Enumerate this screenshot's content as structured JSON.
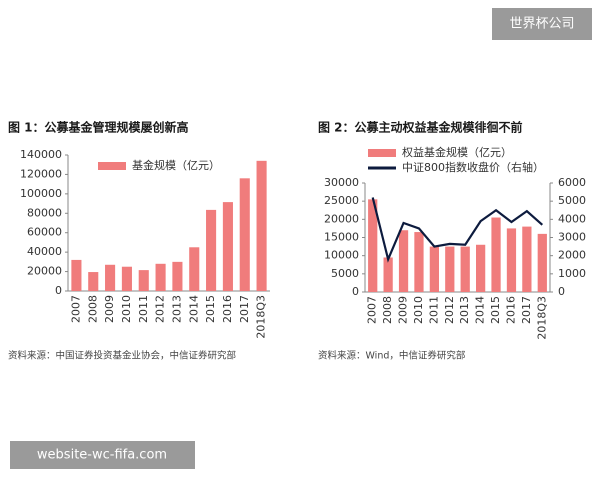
{
  "watermarks": {
    "top_right": "世界杯公司",
    "bottom_left": "website-wc-fifa.com"
  },
  "chart_data": [
    {
      "type": "bar",
      "title": "图 1：公募基金管理规模屡创新高",
      "categories": [
        "2007",
        "2008",
        "2009",
        "2010",
        "2011",
        "2012",
        "2013",
        "2014",
        "2015",
        "2016",
        "2017",
        "2018Q3"
      ],
      "series": [
        {
          "name": "基金规模（亿元）",
          "color": "#f07c7c",
          "type": "bar",
          "values": [
            32000,
            19500,
            27000,
            25000,
            21500,
            28000,
            30000,
            45000,
            83500,
            91500,
            116000,
            134000
          ]
        }
      ],
      "ylim": [
        0,
        140000
      ],
      "yticks": [
        0,
        20000,
        40000,
        60000,
        80000,
        100000,
        120000,
        140000
      ],
      "grid": false,
      "source": "资料来源：中国证券投资基金业协会，中信证券研究部"
    },
    {
      "type": "bar_line",
      "title": "图 2：公募主动权益基金规模徘徊不前",
      "categories": [
        "2007",
        "2008",
        "2009",
        "2010",
        "2011",
        "2012",
        "2013",
        "2014",
        "2015",
        "2016",
        "2017",
        "2018Q3"
      ],
      "series": [
        {
          "name": "权益基金规模（亿元）",
          "color": "#f07c7c",
          "type": "bar",
          "values": [
            25500,
            9500,
            17000,
            16500,
            12500,
            12500,
            12500,
            13000,
            20500,
            17500,
            18000,
            16000
          ]
        },
        {
          "name": "中证800指数收盘价（右轴）",
          "color": "#0d1b3e",
          "type": "line",
          "axis": "y2",
          "values": [
            5200,
            1800,
            3800,
            3500,
            2500,
            2650,
            2600,
            3900,
            4500,
            3850,
            4450,
            3700
          ]
        }
      ],
      "ylim": [
        0,
        30000
      ],
      "yticks": [
        0,
        5000,
        10000,
        15000,
        20000,
        25000,
        30000
      ],
      "y2lim": [
        0,
        6000
      ],
      "y2ticks": [
        0,
        1000,
        2000,
        3000,
        4000,
        5000,
        6000
      ],
      "grid": false,
      "source": "资料来源：Wind，中信证券研究部"
    }
  ]
}
